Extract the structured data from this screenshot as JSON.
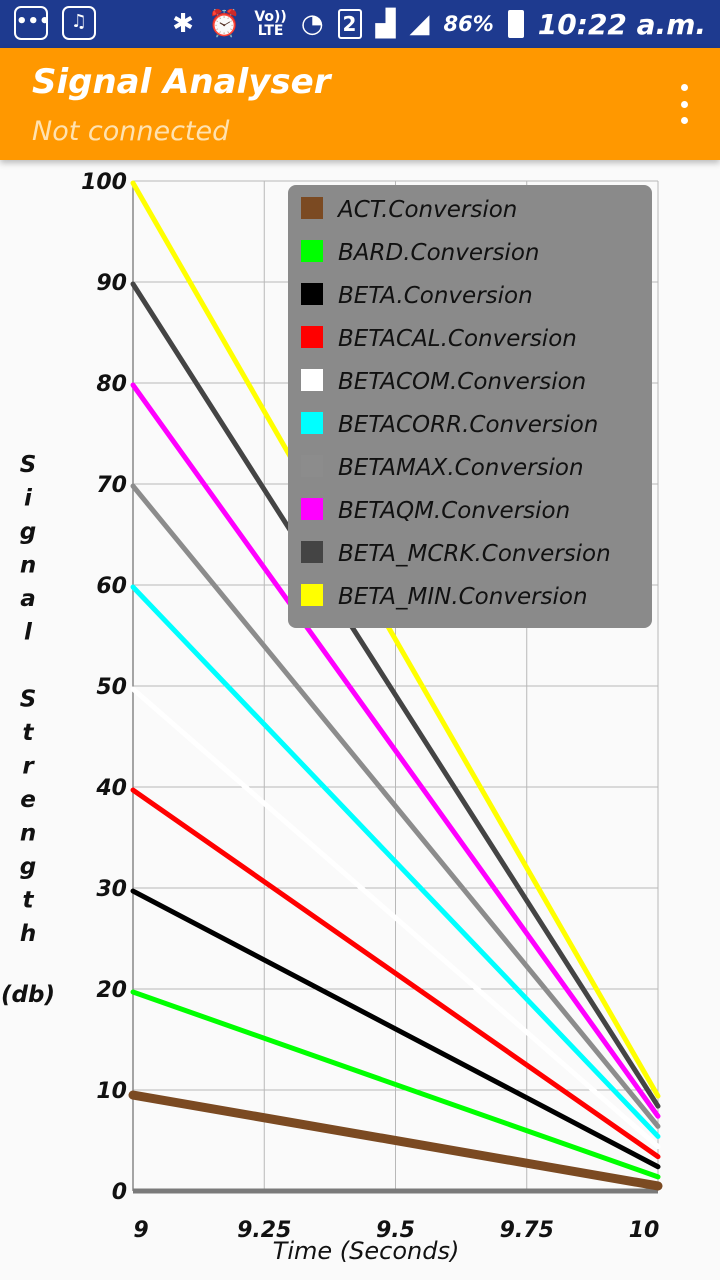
{
  "status_bar": {
    "battery_percent": "86%",
    "time": "10:22 a.m.",
    "network_label_top": "Vo))",
    "network_label_bottom": "LTE",
    "sim_slot": "2",
    "icons": [
      "chat-icon",
      "app-icon",
      "bluetooth-icon",
      "alarm-icon",
      "wifi-icon",
      "signal-icon",
      "signal-icon-2",
      "battery-charging-icon"
    ]
  },
  "app_bar": {
    "title": "Signal Analyser",
    "subtitle": "Not connected",
    "menu_icon": "more-vert-icon"
  },
  "chart_data": {
    "type": "line",
    "xlabel": "Time (Seconds)",
    "ylabel": "Signal Strength (db)",
    "xlim": [
      9,
      10
    ],
    "ylim": [
      0,
      100
    ],
    "x_ticks": [
      "9",
      "9.25",
      "9.5",
      "9.75",
      "10"
    ],
    "y_ticks": [
      "0",
      "10",
      "20",
      "30",
      "40",
      "50",
      "60",
      "70",
      "80",
      "90",
      "100"
    ],
    "grid": true,
    "legend_placement": "top-right",
    "series": [
      {
        "name": "ACT.Conversion",
        "color": "#7b4a22",
        "x": [
          9,
          10
        ],
        "y": [
          9.5,
          0.5
        ]
      },
      {
        "name": "BARD.Conversion",
        "color": "#00ff00",
        "x": [
          9,
          10
        ],
        "y": [
          19.7,
          1.4
        ]
      },
      {
        "name": "BETA.Conversion",
        "color": "#000000",
        "x": [
          9,
          10
        ],
        "y": [
          29.7,
          2.4
        ]
      },
      {
        "name": "BETACAL.Conversion",
        "color": "#ff0000",
        "x": [
          9,
          10
        ],
        "y": [
          39.7,
          3.4
        ]
      },
      {
        "name": "BETACOM.Conversion",
        "color": "#ffffff",
        "x": [
          9,
          10
        ],
        "y": [
          49.7,
          4.4
        ]
      },
      {
        "name": "BETACORR.Conversion",
        "color": "#00ffff",
        "x": [
          9,
          10
        ],
        "y": [
          59.8,
          5.4
        ]
      },
      {
        "name": "BETAMAX.Conversion",
        "color": "#8c8c8c",
        "x": [
          9,
          10
        ],
        "y": [
          69.8,
          6.4
        ]
      },
      {
        "name": "BETAQM.Conversion",
        "color": "#ff00ff",
        "x": [
          9,
          10
        ],
        "y": [
          79.8,
          7.4
        ]
      },
      {
        "name": "BETA_MCRK.Conversion",
        "color": "#444444",
        "x": [
          9,
          10
        ],
        "y": [
          89.8,
          8.4
        ]
      },
      {
        "name": "BETA_MIN.Conversion",
        "color": "#ffff00",
        "x": [
          9,
          10
        ],
        "y": [
          99.8,
          9.4
        ]
      }
    ]
  }
}
